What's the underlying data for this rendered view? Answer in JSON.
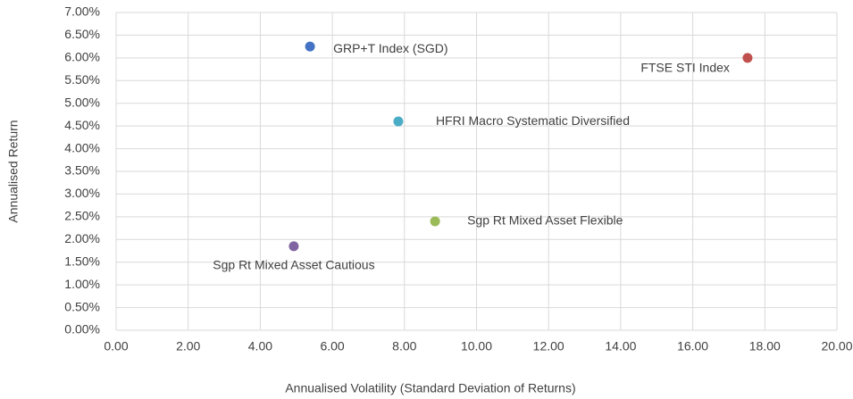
{
  "chart_data": {
    "type": "scatter",
    "x_label": "Annualised Volatility (Standard Deviation of Returns)",
    "y_label": "Annualised Return",
    "series": [
      {
        "name": "GRP+T Index (SGD)",
        "color": "#4472c4",
        "x": [
          5.38
        ],
        "values": [
          6.25
        ]
      },
      {
        "name": "FTSE STI Index",
        "color": "#c0504d",
        "x": [
          17.52
        ],
        "values": [
          6.0
        ]
      },
      {
        "name": "HFRI Macro Systematic Diversified",
        "color": "#4bacc6",
        "x": [
          7.83
        ],
        "values": [
          4.6
        ]
      },
      {
        "name": "Sgp Rt Mixed Asset Flexible",
        "color": "#9bbb59",
        "x": [
          8.85
        ],
        "values": [
          2.4
        ]
      },
      {
        "name": "Sgp Rt Mixed Asset Cautious",
        "color": "#8064a2",
        "x": [
          4.93
        ],
        "values": [
          1.85
        ]
      }
    ],
    "xlim": [
      0,
      20
    ],
    "xticks": [
      {
        "value": 0,
        "label": "0.00"
      },
      {
        "value": 2,
        "label": "2.00"
      },
      {
        "value": 4,
        "label": "4.00"
      },
      {
        "value": 6,
        "label": "6.00"
      },
      {
        "value": 8,
        "label": "8.00"
      },
      {
        "value": 10,
        "label": "10.00"
      },
      {
        "value": 12,
        "label": "12.00"
      },
      {
        "value": 14,
        "label": "14.00"
      },
      {
        "value": 16,
        "label": "16.00"
      },
      {
        "value": 18,
        "label": "18.00"
      },
      {
        "value": 20,
        "label": "20.00"
      }
    ],
    "ylim": [
      0,
      7
    ],
    "yticks": [
      {
        "value": 0,
        "label": "0.00%"
      },
      {
        "value": 0.5,
        "label": "0.50%"
      },
      {
        "value": 1,
        "label": "1.00%"
      },
      {
        "value": 1.5,
        "label": "1.50%"
      },
      {
        "value": 2,
        "label": "2.00%"
      },
      {
        "value": 2.5,
        "label": "2.50%"
      },
      {
        "value": 3,
        "label": "3.00%"
      },
      {
        "value": 3.5,
        "label": "3.50%"
      },
      {
        "value": 4,
        "label": "4.00%"
      },
      {
        "value": 4.5,
        "label": "4.50%"
      },
      {
        "value": 5,
        "label": "5.00%"
      },
      {
        "value": 5.5,
        "label": "5.50%"
      },
      {
        "value": 6,
        "label": "6.00%"
      },
      {
        "value": 6.5,
        "label": "6.50%"
      },
      {
        "value": 7,
        "label": "7.00%"
      }
    ],
    "grid": true
  }
}
